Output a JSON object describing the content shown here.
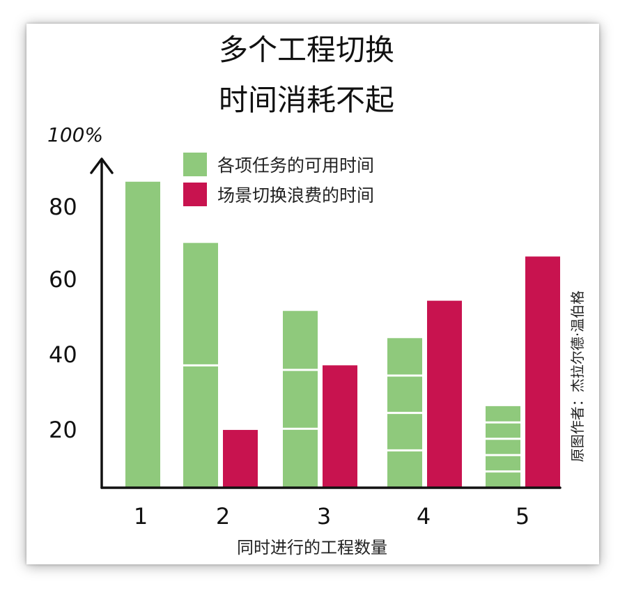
{
  "chart_data": {
    "type": "bar",
    "title_line1": "多个工程切换",
    "title_line2": "时间消耗不起",
    "xlabel": "同时进行的工程数量",
    "ylabel": "",
    "ylim": [
      0,
      100
    ],
    "yticks": [
      "20",
      "40",
      "60",
      "80",
      "100%"
    ],
    "ytick_values": [
      20,
      40,
      60,
      80,
      100
    ],
    "categories": [
      "1",
      "2",
      "3",
      "4",
      "5"
    ],
    "legend_position": "top-center",
    "series": [
      {
        "name": "各项任务的可用时间",
        "color": "#8fc97c",
        "values": [
          90,
          72,
          52,
          44,
          24
        ],
        "segments": [
          1,
          2,
          3,
          4,
          5
        ]
      },
      {
        "name": "场景切换浪费的时间",
        "color": "#c8134f",
        "values": [
          0,
          17,
          36,
          55,
          68
        ]
      }
    ],
    "credit": "原图作者：杰拉尔德·温伯格"
  }
}
